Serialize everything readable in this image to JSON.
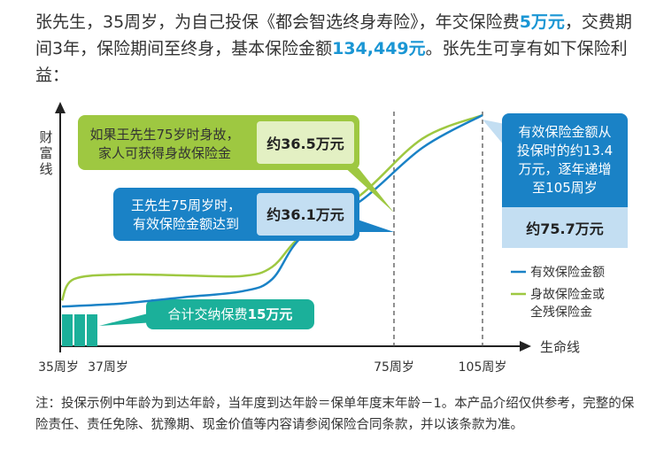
{
  "intro": {
    "part1": "张先生，35周岁，为自己投保《都会智选终身寿险》，年交保险费",
    "premium": "5万元",
    "part2": "，交费期间3年，保险期间至终身，基本保险金额",
    "sum_assured": "134,449元",
    "part3": "。张先生可享有如下保险利益："
  },
  "chart_data": {
    "type": "line",
    "ylabel": "财富线",
    "xlabel": "生命线",
    "x_ticks": [
      "35周岁",
      "37周岁",
      "75周岁",
      "105周岁"
    ],
    "series": [
      {
        "name": "有效保险金额",
        "color": "#1a82c6",
        "points": [
          [
            35,
            0.13
          ],
          [
            45,
            0.14
          ],
          [
            55,
            0.16
          ],
          [
            65,
            0.18
          ],
          [
            70,
            0.22
          ],
          [
            75,
            0.36
          ],
          [
            85,
            0.48
          ],
          [
            95,
            0.65
          ],
          [
            105,
            0.757
          ]
        ]
      },
      {
        "name": "身故保险金或全残保险金",
        "color": "#9ec841",
        "points": [
          [
            35,
            0.15
          ],
          [
            37,
            0.22
          ],
          [
            45,
            0.235
          ],
          [
            55,
            0.232
          ],
          [
            65,
            0.23
          ],
          [
            70,
            0.26
          ],
          [
            75,
            0.365
          ],
          [
            85,
            0.5
          ],
          [
            95,
            0.68
          ],
          [
            105,
            0.757
          ]
        ]
      }
    ],
    "paid_total": "15万元",
    "callouts": [
      {
        "text_line1": "如果王先生75岁时身故，",
        "text_line2": "家人可获得身故保险金",
        "value": "约36.5万元"
      },
      {
        "text_line1": "王先生75周岁时，",
        "text_line2": "有效保险金额达到",
        "value": "约36.1万元"
      },
      {
        "text_line1": "有效保险金额从",
        "text_line2": "投保时的约13.4",
        "text_line3": "万元，逐年递增",
        "text_line4": "至105周岁",
        "value": "约75.7万元"
      }
    ],
    "paid_label_prefix": "合计交纳保费",
    "legend": [
      {
        "label": "有效保险金额",
        "color": "#1a82c6"
      },
      {
        "label": "身故保险金或",
        "label2": "全残保险金",
        "color": "#9ec841"
      }
    ]
  },
  "note": "注：投保示例中年龄为到达年龄，当年度到达年龄＝保单年度末年龄－1。本产品介绍仅供参考，完整的保险责任、责任免除、犹豫期、现金价值等内容请参阅保险合同条款，并以该条款为准。"
}
